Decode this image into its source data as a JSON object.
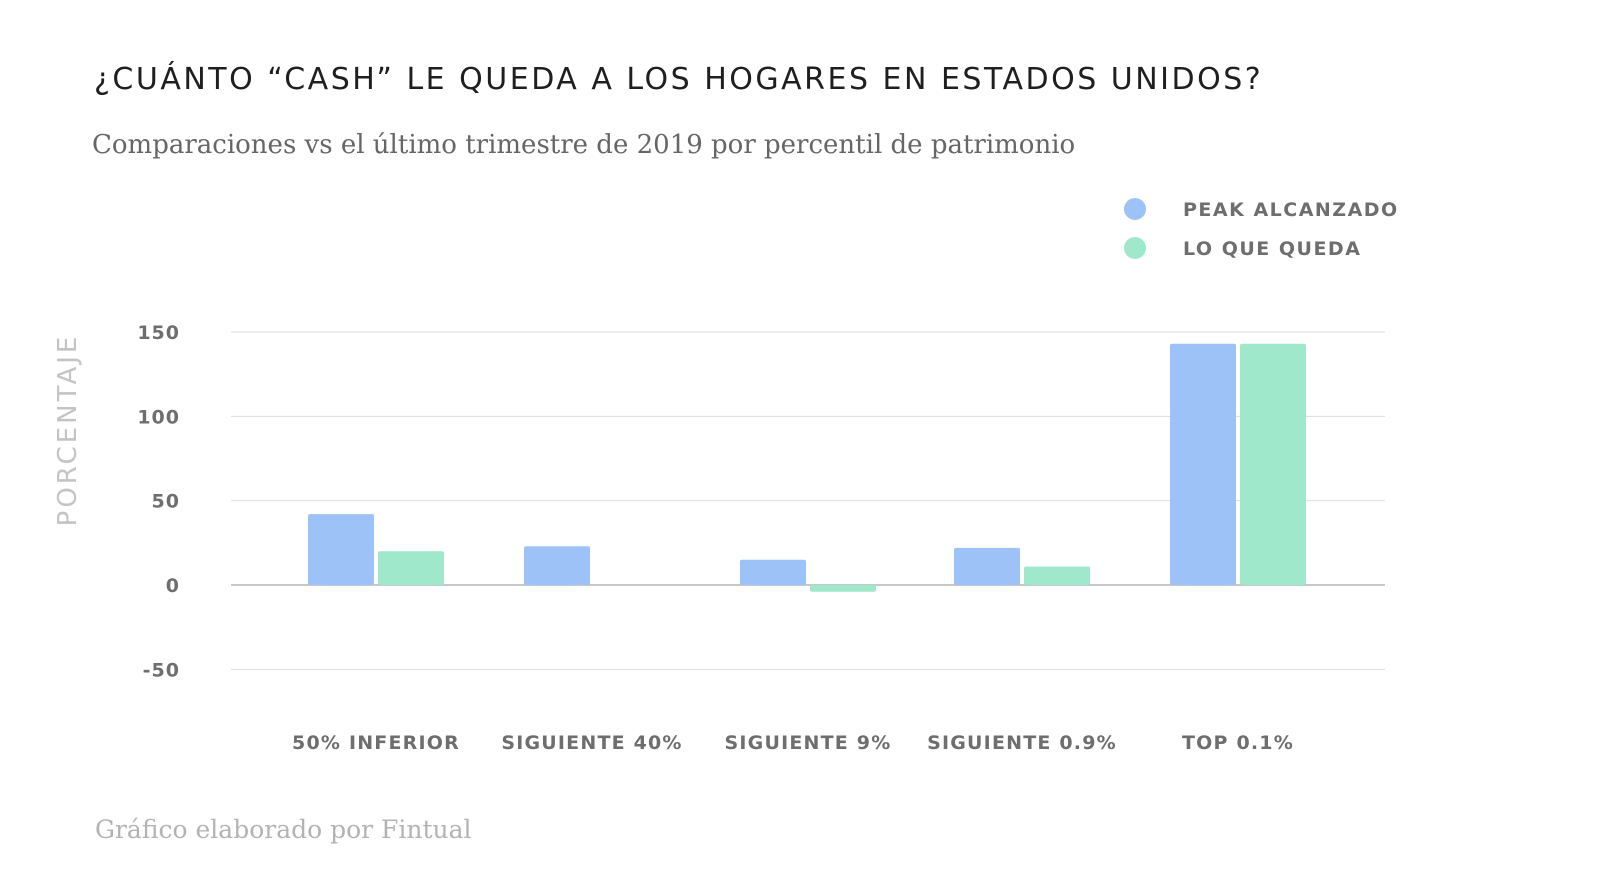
{
  "title": "¿CUÁNTO “CASH” LE QUEDA A LOS HOGARES EN ESTADOS UNIDOS?",
  "subtitle": "Comparaciones vs el último trimestre de 2019 por percentil de patrimonio",
  "footer": "Gráfico elaborado por Fintual",
  "colors": {
    "peak": "#9dc2f7",
    "queda": "#a0e8cb",
    "gridline": "#dddddd",
    "zeroline": "#b5b5b5",
    "tick_text": "#6e6e6e",
    "legend_text": "#6e6e6e",
    "ylabel_text": "#c4c4c4"
  },
  "chart_data": {
    "type": "bar",
    "title": "¿CUÁNTO “CASH” LE QUEDA A LOS HOGARES EN ESTADOS UNIDOS?",
    "subtitle": "Comparaciones vs el último trimestre de 2019 por percentil de patrimonio",
    "xlabel": "",
    "ylabel": "PORCENTAJE",
    "ylim": [
      -50,
      150
    ],
    "yticks": [
      150,
      100,
      50,
      0,
      -50
    ],
    "categories": [
      "50% INFERIOR",
      "SIGUIENTE 40%",
      "SIGUIENTE 9%",
      "SIGUIENTE 0.9%",
      "TOP 0.1%"
    ],
    "series": [
      {
        "name": "PEAK ALCANZADO",
        "values": [
          42,
          23,
          15,
          22,
          143
        ]
      },
      {
        "name": "LO QUE QUEDA",
        "values": [
          20,
          0,
          -4,
          11,
          143
        ]
      }
    ],
    "grid": true,
    "legend_position": "top-right"
  }
}
